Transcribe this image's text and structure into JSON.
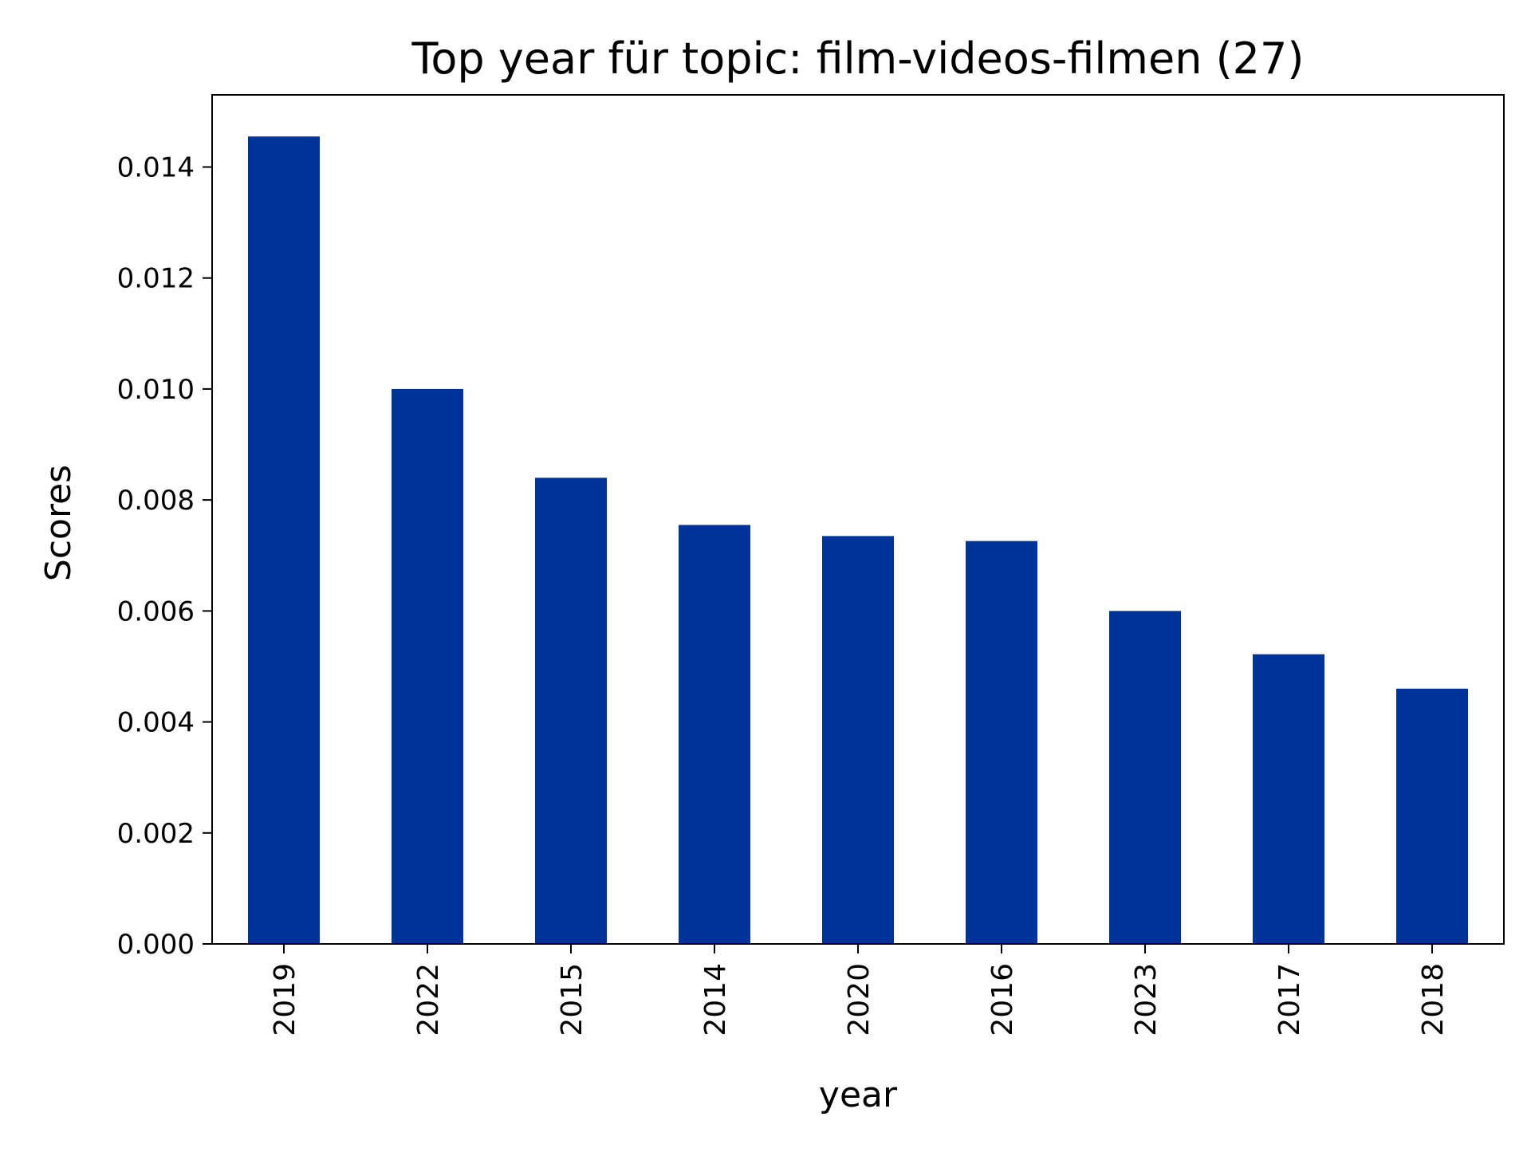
{
  "chart_data": {
    "type": "bar",
    "title": "Top year für topic: film-videos-filmen (27)",
    "xlabel": "year",
    "ylabel": "Scores",
    "categories": [
      "2019",
      "2022",
      "2015",
      "2014",
      "2020",
      "2016",
      "2023",
      "2017",
      "2018"
    ],
    "values": [
      0.01455,
      0.01,
      0.0084,
      0.00755,
      0.00735,
      0.00726,
      0.006,
      0.00522,
      0.0046
    ],
    "ylim": [
      0,
      0.0153
    ],
    "yticks": [
      "0.000",
      "0.002",
      "0.004",
      "0.006",
      "0.008",
      "0.010",
      "0.012",
      "0.014"
    ],
    "ytick_values": [
      0,
      0.002,
      0.004,
      0.006,
      0.008,
      0.01,
      0.012,
      0.014
    ],
    "bar_color": "#003399",
    "grid": false,
    "legend": "none"
  }
}
